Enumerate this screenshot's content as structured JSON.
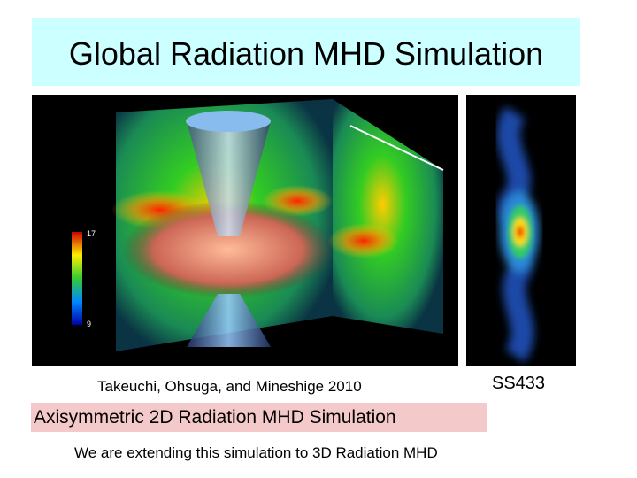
{
  "header": {
    "title": "Global Radiation MHD Simulation"
  },
  "figures": [
    {
      "caption": "Takeuchi, Ohsuga, and Mineshige 2010",
      "colorbar_ticks": [
        "17",
        "9"
      ]
    },
    {
      "caption": "SS433"
    }
  ],
  "highlight": "Axisymmetric 2D Radiation MHD Simulation",
  "note": "We are extending this simulation to 3D Radiation MHD"
}
